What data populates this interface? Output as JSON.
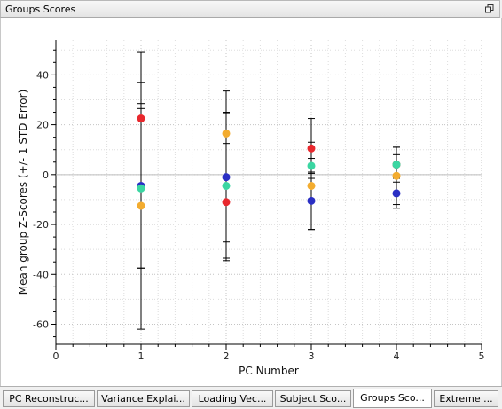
{
  "panel": {
    "title": "Groups Scores",
    "restore_icon": "restore-icon"
  },
  "tabs": [
    {
      "label": "PC Reconstruc...",
      "active": false
    },
    {
      "label": "Variance Explai...",
      "active": false
    },
    {
      "label": "Loading Vec...",
      "active": false
    },
    {
      "label": "Subject Sco...",
      "active": false
    },
    {
      "label": "Groups Sco...",
      "active": true
    },
    {
      "label": "Extreme ...",
      "active": false
    }
  ],
  "chart_data": {
    "type": "scatter",
    "title": "",
    "xlabel": "PC Number",
    "ylabel": "Mean group Z-Scores (+/- 1 STD Error)",
    "xlim": [
      0,
      5
    ],
    "ylim": [
      -68,
      54
    ],
    "xticks": [
      0,
      1,
      2,
      3,
      4,
      5
    ],
    "yticks": [
      -60,
      -40,
      -20,
      0,
      20,
      40
    ],
    "grid": true,
    "legend": "none",
    "series": [
      {
        "color": "#e8282d",
        "points": [
          {
            "x": 1,
            "y": 22.5,
            "err": 26.5
          },
          {
            "x": 2,
            "y": -11,
            "err": 23.5
          },
          {
            "x": 3,
            "y": 10.5,
            "err": 12
          },
          {
            "x": 4,
            "y": 4,
            "err": 7
          }
        ]
      },
      {
        "color": "#2a2fc4",
        "points": [
          {
            "x": 1,
            "y": -4.5,
            "err": 33
          },
          {
            "x": 2,
            "y": -1,
            "err": 26
          },
          {
            "x": 3,
            "y": -10.5,
            "err": 11.5
          },
          {
            "x": 4,
            "y": -7.5,
            "err": 6
          }
        ]
      },
      {
        "color": "#3bd6a2",
        "points": [
          {
            "x": 1,
            "y": -5.5,
            "err": 32
          },
          {
            "x": 2,
            "y": -4.5,
            "err": 29
          },
          {
            "x": 3,
            "y": 3.5,
            "err": 3
          },
          {
            "x": 4,
            "y": 4,
            "err": 4
          }
        ]
      },
      {
        "color": "#f3ac2f",
        "points": [
          {
            "x": 1,
            "y": -12.5,
            "err": 49.5
          },
          {
            "x": 2,
            "y": 16.5,
            "err": 17
          },
          {
            "x": 3,
            "y": -4.5,
            "err": 17.5
          },
          {
            "x": 4,
            "y": -0.5,
            "err": 11.5
          }
        ]
      }
    ]
  }
}
